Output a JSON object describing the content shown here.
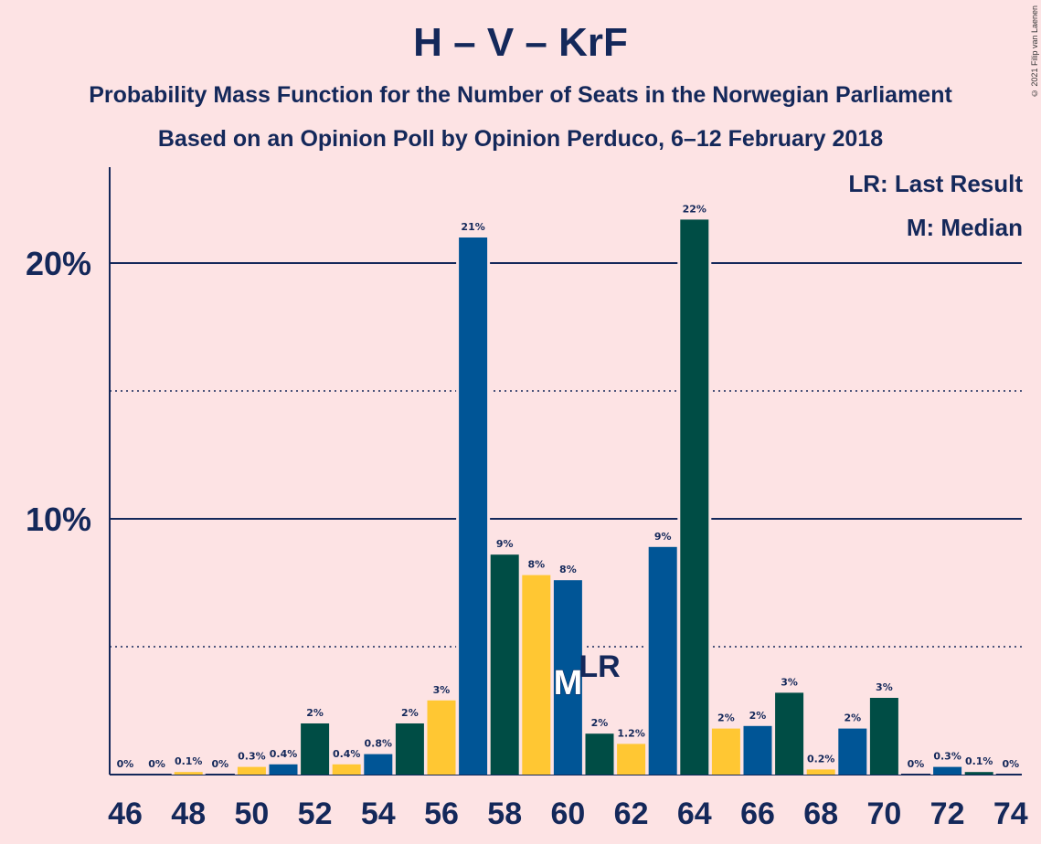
{
  "title": "H – V – KrF",
  "subtitle1": "Probability Mass Function for the Number of Seats in the Norwegian Parliament",
  "subtitle2": "Based on an Opinion Poll by Opinion Perduco, 6–12 February 2018",
  "copyright": "© 2021 Filip van Laenen",
  "legend": {
    "lr": "LR: Last Result",
    "m": "M: Median"
  },
  "colors": {
    "blue": "#005596",
    "green": "#004d45",
    "yellow": "#ffc733",
    "background": "#fde3e4",
    "text": "#14285a"
  },
  "chart_data": {
    "type": "bar",
    "x": [
      46,
      47,
      48,
      49,
      50,
      51,
      52,
      53,
      54,
      55,
      56,
      57,
      58,
      59,
      60,
      61,
      62,
      63,
      64,
      65,
      66,
      67,
      68,
      69,
      70,
      71,
      72,
      73,
      74
    ],
    "values": [
      0,
      0,
      0.1,
      0,
      0.3,
      0.4,
      2.0,
      0.4,
      0.8,
      2.0,
      2.9,
      21.0,
      8.6,
      7.8,
      7.6,
      1.6,
      1.2,
      8.9,
      21.7,
      1.8,
      1.9,
      3.2,
      0.2,
      1.8,
      3.0,
      0,
      0.3,
      0.1,
      0
    ],
    "value_labels": [
      "0%",
      "0%",
      "0.1%",
      "0%",
      "0.3%",
      "0.4%",
      "2%",
      "0.4%",
      "0.8%",
      "2%",
      "3%",
      "21%",
      "9%",
      "8%",
      "8%",
      "2%",
      "1.2%",
      "9%",
      "22%",
      "2%",
      "2%",
      "3%",
      "0.2%",
      "2%",
      "3%",
      "0%",
      "0.3%",
      "0.1%",
      "0%"
    ],
    "bar_colors": [
      "blue",
      "green",
      "yellow",
      "blue",
      "yellow",
      "blue",
      "green",
      "yellow",
      "blue",
      "green",
      "yellow",
      "blue",
      "green",
      "yellow",
      "blue",
      "green",
      "yellow",
      "blue",
      "green",
      "yellow",
      "blue",
      "green",
      "yellow",
      "blue",
      "green",
      "yellow",
      "blue",
      "green",
      "yellow"
    ],
    "x_ticks": [
      "46",
      "48",
      "50",
      "52",
      "54",
      "56",
      "58",
      "60",
      "62",
      "64",
      "66",
      "68",
      "70",
      "72",
      "74"
    ],
    "y_ticks": [
      {
        "value": 10,
        "label": "10%"
      },
      {
        "value": 20,
        "label": "20%"
      }
    ],
    "ylim": [
      0,
      23.7
    ],
    "median": {
      "x": 60,
      "label": "M"
    },
    "last_result": {
      "x": 61,
      "label": "LR"
    }
  }
}
